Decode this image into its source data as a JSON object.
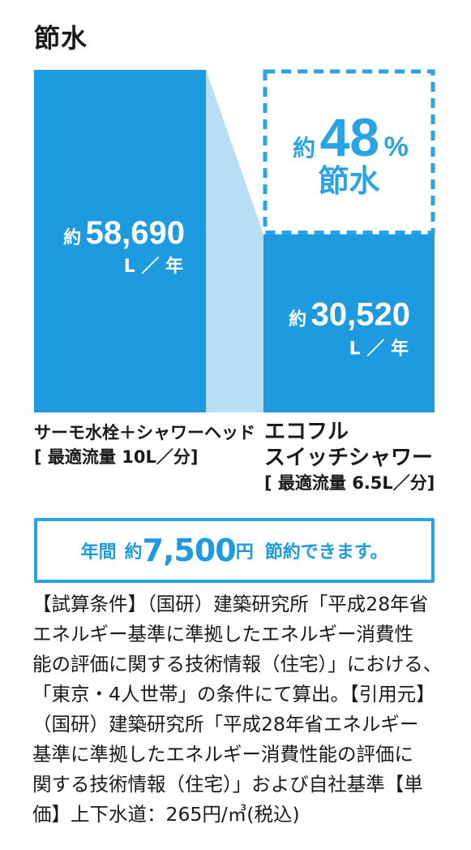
{
  "title": "節水",
  "chart_data": {
    "type": "bar",
    "categories": [
      "サーモ水栓＋シャワーヘッド [最適流量 10L／分]",
      "エコフル スイッチシャワー [最適流量 6.5L／分]"
    ],
    "values": [
      58690,
      30520
    ],
    "unit": "L／年",
    "ylim": [
      0,
      58690
    ],
    "grid": false,
    "bar_color": "#1e9ae0",
    "connector_color": "#b7def5",
    "value_prefix": "約",
    "value_labels": [
      "58,690",
      "30,520"
    ],
    "unit_label": "L ／ 年",
    "annotation": {
      "prefix": "約",
      "percent": "48",
      "percent_sign": "%",
      "text": "節水",
      "color": "#2aa3e6"
    }
  },
  "labels": {
    "left": {
      "line1": "サーモ水栓＋シャワーヘッド",
      "line2": "[ 最適流量 10L／分]"
    },
    "right": {
      "line1": "エコフル",
      "line2": "スイッチシャワー",
      "line3": "[ 最適流量 6.5L／分]"
    }
  },
  "savings": {
    "pre": "年間",
    "approx": "約",
    "amount": "7,500",
    "currency": "円",
    "text": "節約できます。"
  },
  "footnote": [
    "【試算条件】（国研）建築研究所「平成28年省",
    "エネルギー基準に準拠したエネルギー消費性",
    "能の評価に関する技術情報（住宅）」における、",
    "「東京・4人世帯」の条件にて算出。【引用元】",
    "（国研）建築研究所「平成28年省エネルギー",
    "基準に準拠したエネルギー消費性能の評価に",
    "関する技術情報（住宅）」および自社基準【単",
    "価】上下水道：265円/㎥(税込)"
  ]
}
